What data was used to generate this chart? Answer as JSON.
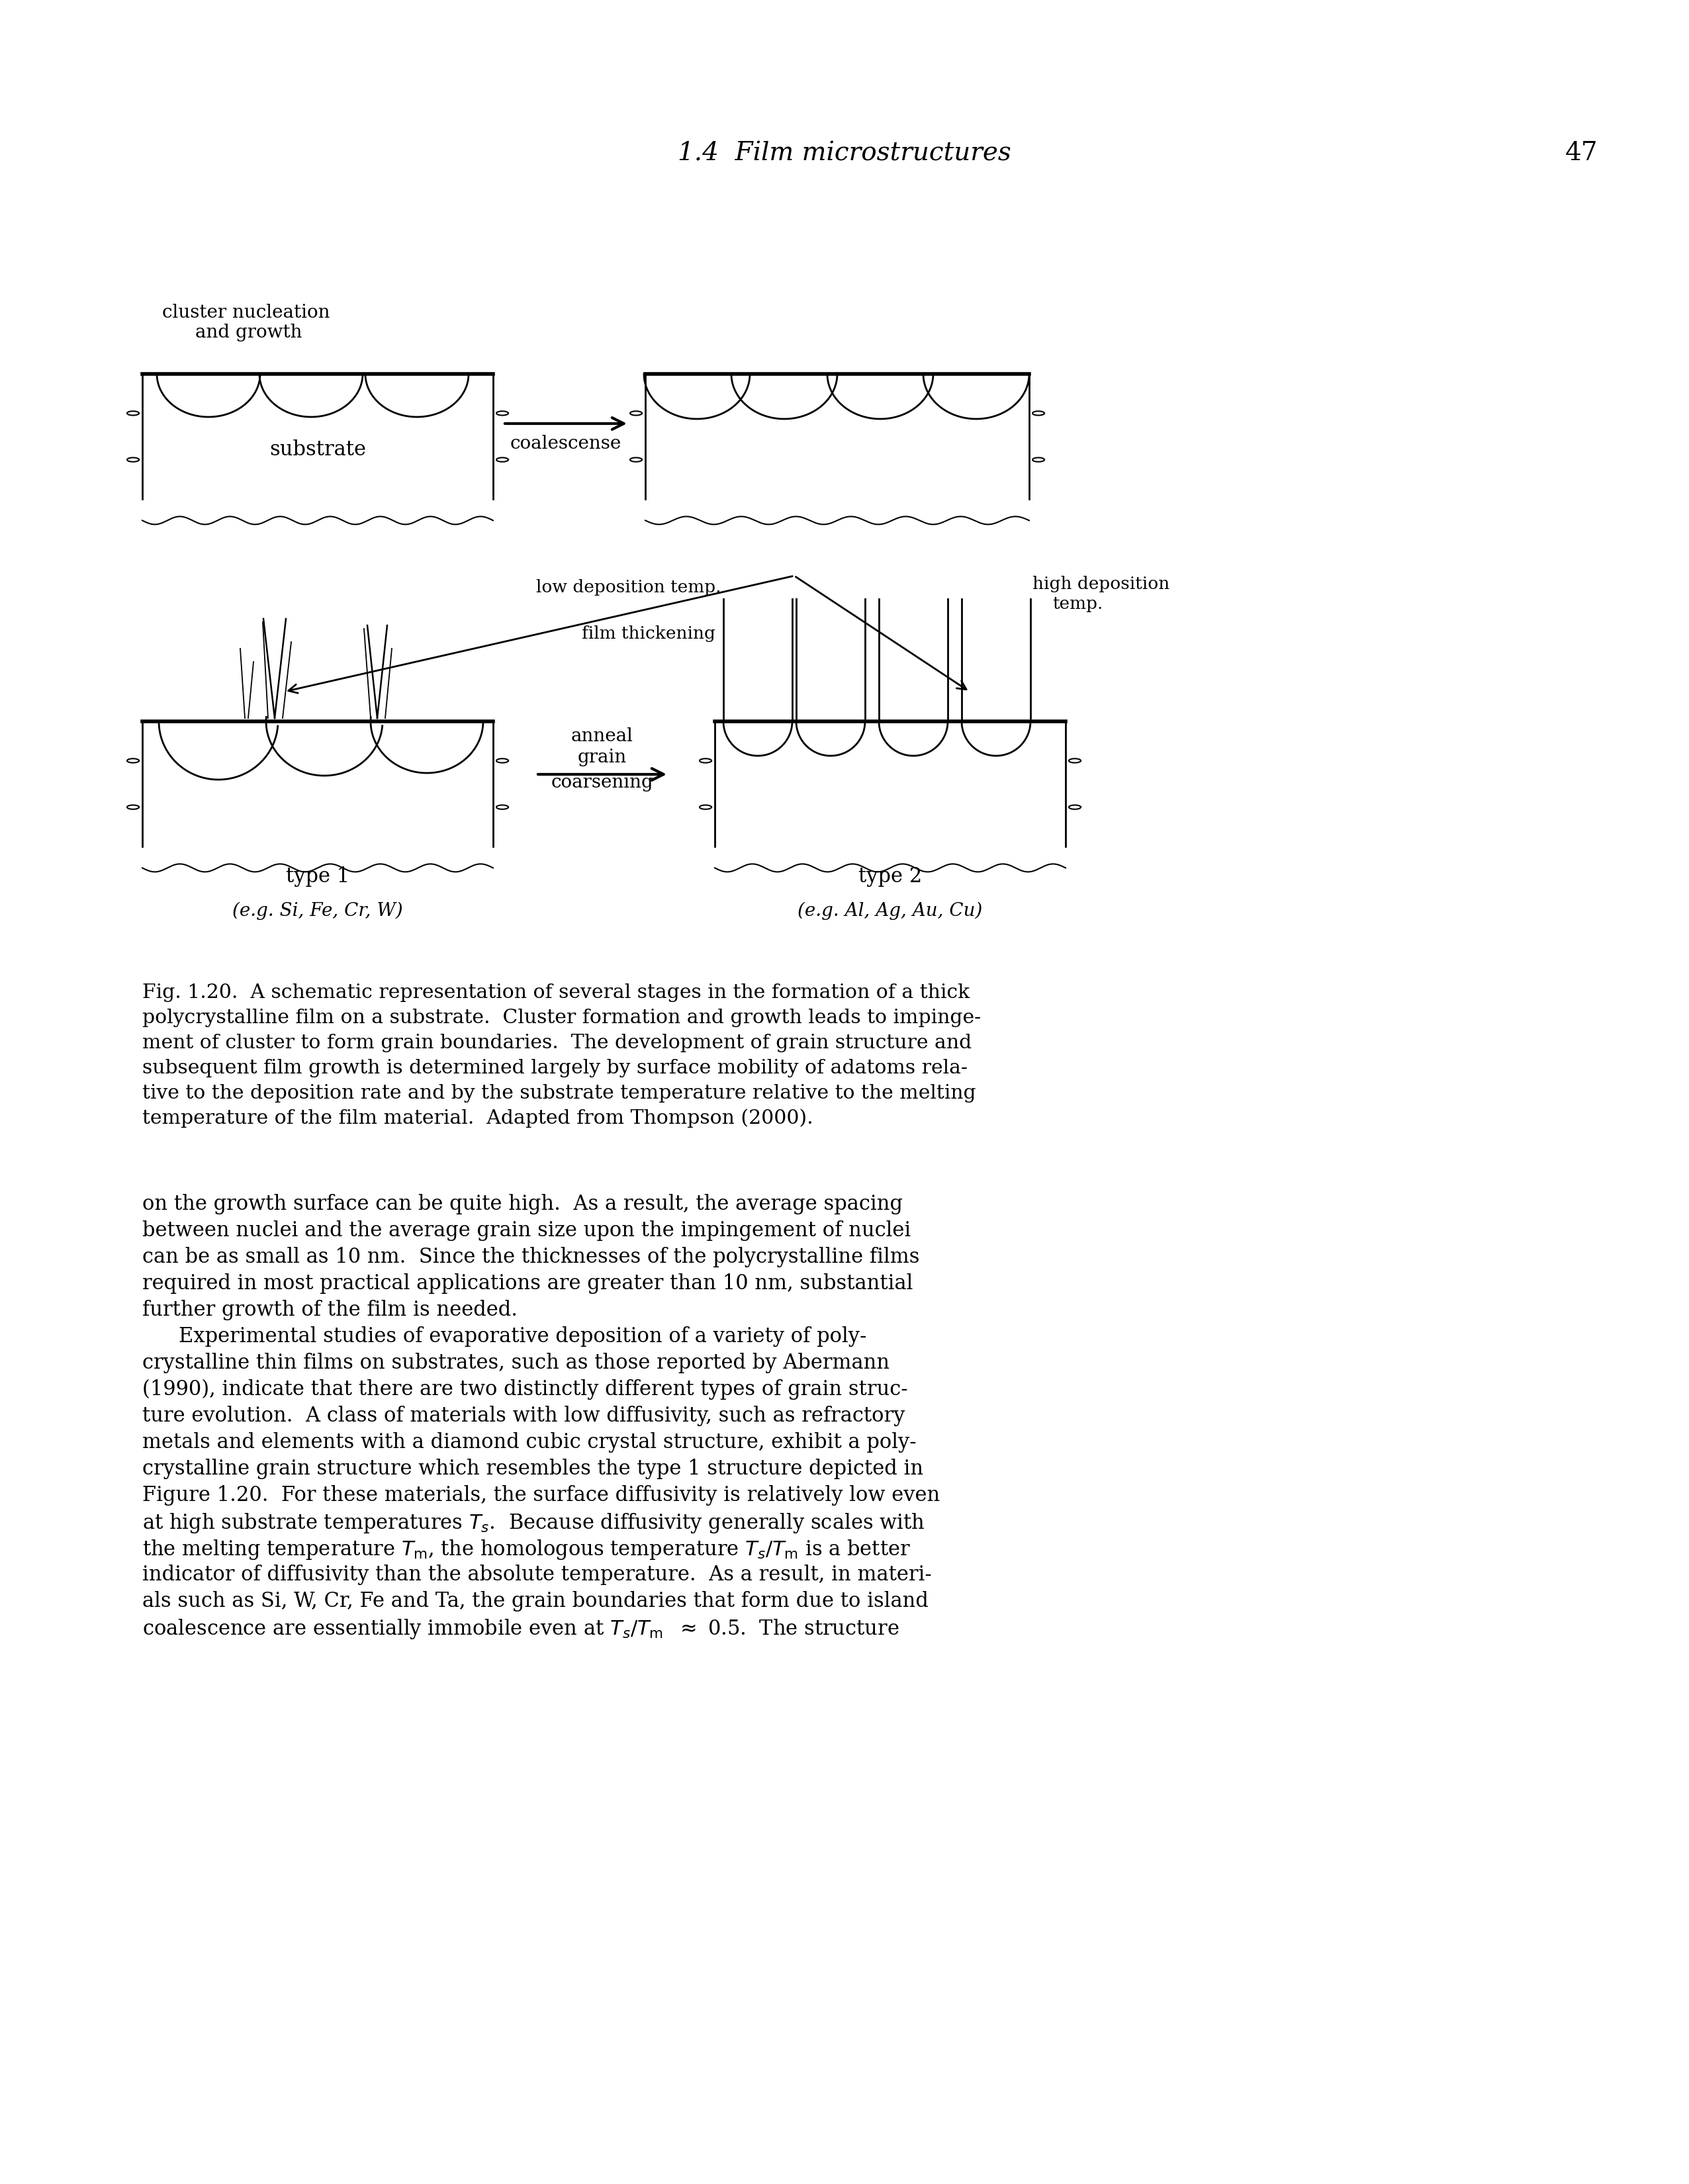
{
  "page_title": "1.4  Film microstructures",
  "page_number": "47",
  "background_color": "#ffffff",
  "caption_line1": "Fig. 1.20.  A schematic representation of several stages in the formation of a thick",
  "caption_line2": "polycrystalline film on a substrate.  Cluster formation and growth leads to impinge-",
  "caption_line3": "ment of cluster to form grain boundaries.  The development of grain structure and",
  "caption_line4": "subsequent film growth is determined largely by surface mobility of adatoms rela-",
  "caption_line5": "tive to the deposition rate and by the substrate temperature relative to the melting",
  "caption_line6": "temperature of the film material.  Adapted from Thompson (2000).",
  "body_lines": [
    "on the growth surface can be quite high.  As a result, the average spacing",
    "between nuclei and the average grain size upon the impingement of nuclei",
    "can be as small as 10 nm.  Since the thicknesses of the polycrystalline films",
    "required in most practical applications are greater than 10 nm, substantial",
    "further growth of the film is needed.",
    "\tExperimental studies of evaporative deposition of a variety of poly-",
    "crystalline thin films on substrates, such as those reported by Abermann",
    "(1990), indicate that there are two distinctly different types of grain struc-",
    "ture evolution.  A class of materials with low diffusivity, such as refractory",
    "metals and elements with a diamond cubic crystal structure, exhibit a poly-",
    "crystalline grain structure which resembles the type 1 structure depicted in",
    "Figure 1.20.  For these materials, the surface diffusivity is relatively low even",
    "at high substrate temperatures $T_s$.  Because diffusivity generally scales with",
    "the melting temperature $T_{\\rm m}$, the homologous temperature $T_s/T_{\\rm m}$ is a better",
    "indicator of diffusivity than the absolute temperature.  As a result, in materi-",
    "als such as Si, W, Cr, Fe and Ta, the grain boundaries that form due to island",
    "coalescence are essentially immobile even at $T_s/T_{\\rm m}$  $\\approx$ 0.5.  The structure"
  ]
}
